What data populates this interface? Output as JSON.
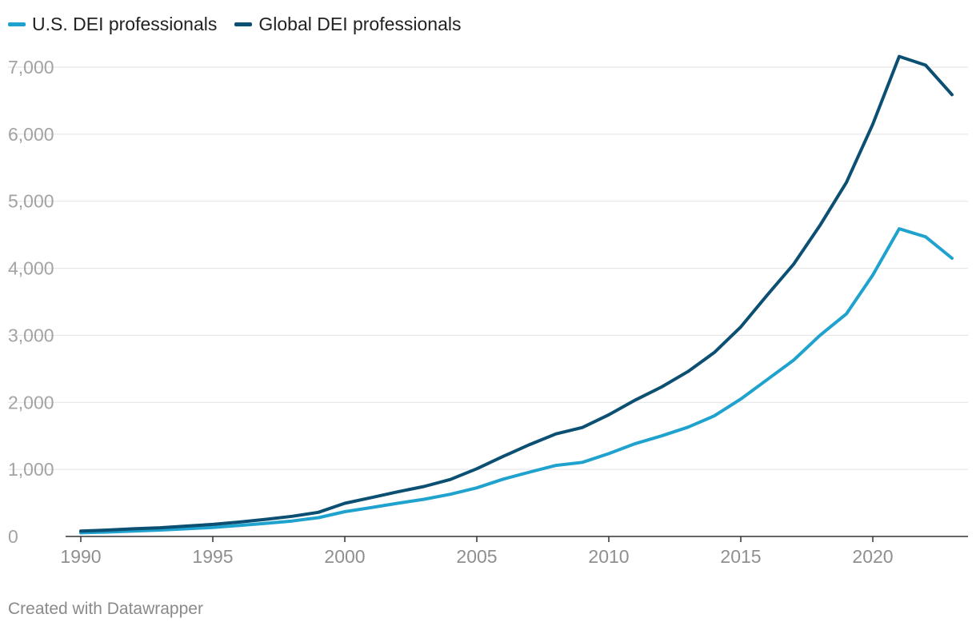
{
  "chart_data": {
    "type": "line",
    "title": "",
    "xlabel": "",
    "ylabel": "",
    "xlim": [
      1990,
      2023
    ],
    "ylim": [
      0,
      7000
    ],
    "y_ticks": [
      0,
      1000,
      2000,
      3000,
      4000,
      5000,
      6000,
      7000
    ],
    "y_tick_labels": [
      "0",
      "1,000",
      "2,000",
      "3,000",
      "4,000",
      "5,000",
      "6,000",
      "7,000"
    ],
    "x_ticks": [
      1990,
      1995,
      2000,
      2005,
      2010,
      2015,
      2020
    ],
    "x_tick_labels": [
      "1990",
      "1995",
      "2000",
      "2005",
      "2010",
      "2015",
      "2020"
    ],
    "grid": true,
    "legend_position": "top-left",
    "x": [
      1990,
      1991,
      1992,
      1993,
      1994,
      1995,
      1996,
      1997,
      1998,
      1999,
      2000,
      2001,
      2002,
      2003,
      2004,
      2005,
      2006,
      2007,
      2008,
      2009,
      2010,
      2011,
      2012,
      2013,
      2014,
      2015,
      2016,
      2017,
      2018,
      2019,
      2020,
      2021,
      2022,
      2023
    ],
    "series": [
      {
        "name": "U.S. DEI professionals",
        "color": "#1fa2cd",
        "values": [
          55,
          65,
          80,
          95,
          115,
          135,
          165,
          195,
          230,
          280,
          370,
          430,
          495,
          555,
          630,
          725,
          855,
          960,
          1060,
          1105,
          1235,
          1385,
          1500,
          1630,
          1800,
          2050,
          2340,
          2630,
          3000,
          3320,
          3900,
          4590,
          4470,
          4150
        ]
      },
      {
        "name": "Global DEI professionals",
        "color": "#0b4f72",
        "values": [
          80,
          95,
          115,
          130,
          155,
          180,
          215,
          255,
          300,
          360,
          495,
          580,
          665,
          745,
          850,
          1010,
          1195,
          1370,
          1530,
          1625,
          1815,
          2035,
          2230,
          2460,
          2745,
          3125,
          3600,
          4060,
          4640,
          5280,
          6150,
          7160,
          7030,
          6590
        ]
      }
    ]
  },
  "footer": {
    "credit": "Created with Datawrapper"
  }
}
